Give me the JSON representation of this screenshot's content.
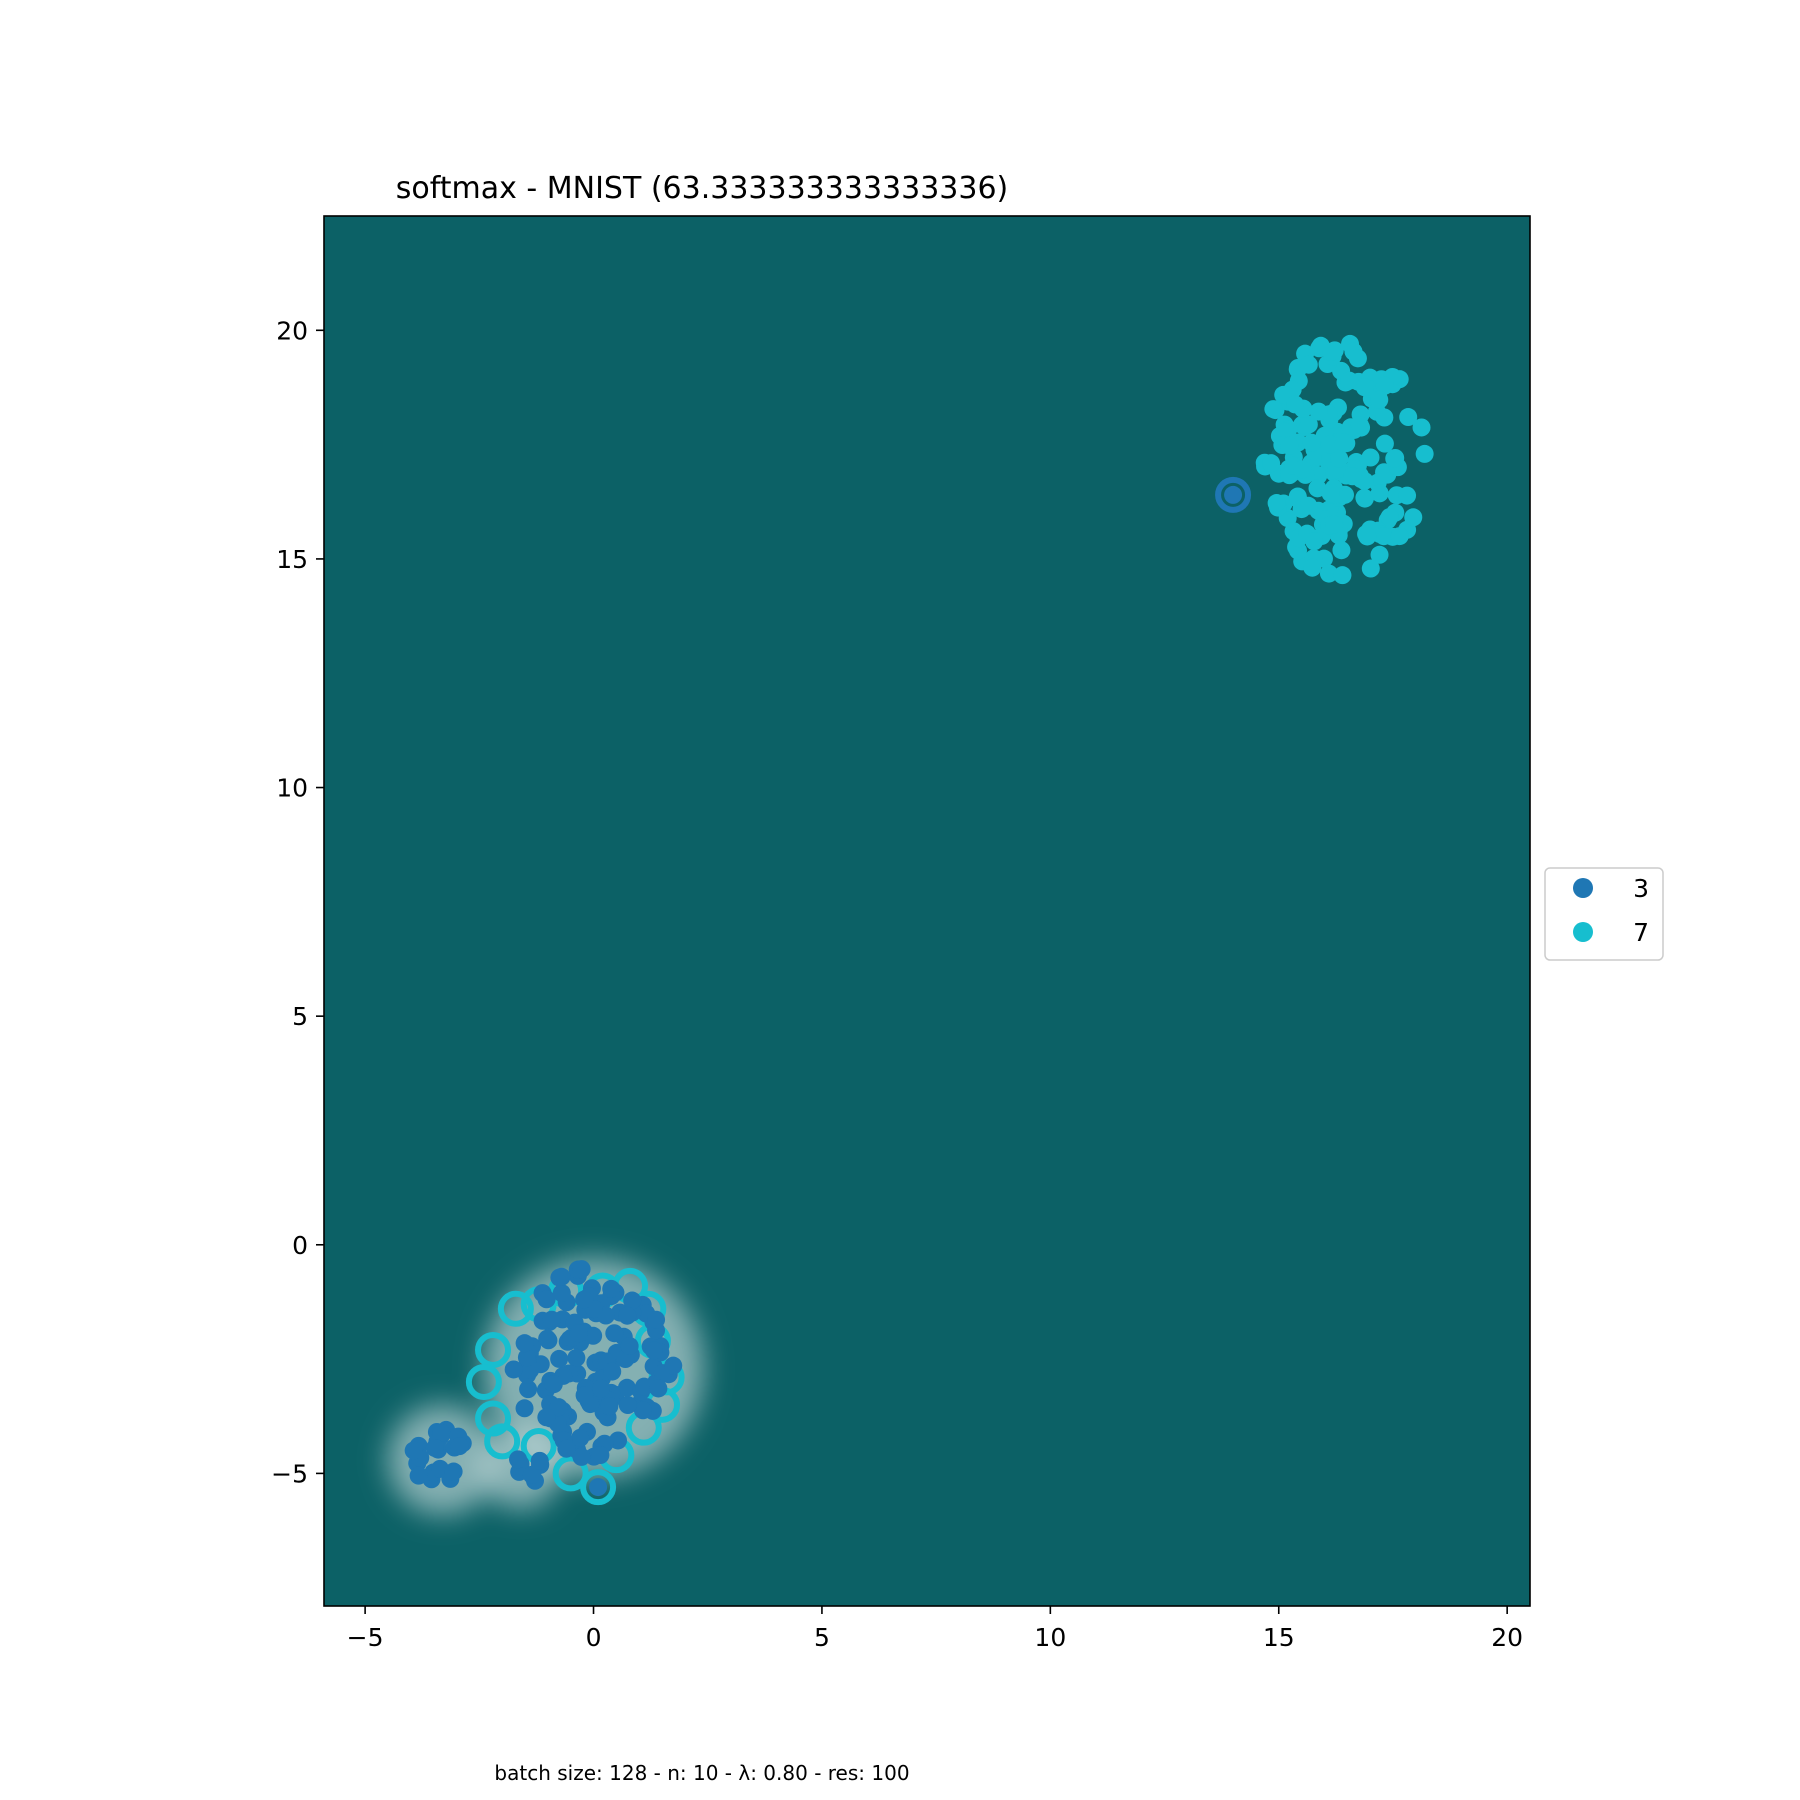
{
  "chart_data": {
    "type": "scatter",
    "title": "softmax - MNIST (63.333333333333336)",
    "footer": "batch size: 128 - n: 10 - λ: 0.80 - res: 100",
    "xlabel": "",
    "ylabel": "",
    "xlim": [
      -5.9,
      20.5
    ],
    "ylim": [
      -7.9,
      22.5
    ],
    "xticks": [
      -5,
      0,
      5,
      10,
      15,
      20
    ],
    "xtick_labels": [
      "−5",
      "0",
      "5",
      "10",
      "15",
      "20"
    ],
    "yticks": [
      -5,
      0,
      5,
      10,
      15,
      20
    ],
    "ytick_labels": [
      "−5",
      "0",
      "5",
      "10",
      "15",
      "20"
    ],
    "grid": false,
    "background_color": "#0c6166",
    "legend": {
      "placement": "center-right-outside",
      "entries": [
        {
          "label": "3",
          "color": "#1f77b4"
        },
        {
          "label": "7",
          "color": "#17becf"
        }
      ]
    },
    "series": [
      {
        "name": "3",
        "color": "#1f77b4",
        "clusters": [
          {
            "cx": 0.0,
            "cy": -2.6,
            "rx": 1.8,
            "ry": 2.1,
            "n": 130,
            "seed": 11
          },
          {
            "cx": -3.4,
            "cy": -4.6,
            "rx": 0.7,
            "ry": 0.6,
            "n": 22,
            "seed": 23
          },
          {
            "cx": -1.6,
            "cy": -4.9,
            "rx": 0.5,
            "ry": 0.35,
            "n": 8,
            "seed": 31
          }
        ],
        "points": [
          [
            14.0,
            16.4
          ],
          [
            -0.7,
            -0.7
          ],
          [
            0.1,
            -5.3
          ]
        ]
      },
      {
        "name": "7",
        "color": "#17becf",
        "clusters": [
          {
            "cx": 16.4,
            "cy": 17.2,
            "rx": 1.8,
            "ry": 2.6,
            "n": 170,
            "seed": 47
          }
        ],
        "misclassified_rings": [
          [
            -1.7,
            -1.4
          ],
          [
            -2.2,
            -2.3
          ],
          [
            -2.4,
            -3.0
          ],
          [
            -2.2,
            -3.8
          ],
          [
            -2.0,
            -4.3
          ],
          [
            -1.2,
            -4.4
          ],
          [
            -0.5,
            -5.0
          ],
          [
            0.1,
            -5.3
          ],
          [
            0.5,
            -4.6
          ],
          [
            1.1,
            -4.0
          ],
          [
            1.5,
            -3.5
          ],
          [
            1.6,
            -2.9
          ],
          [
            1.3,
            -2.1
          ],
          [
            1.2,
            -1.4
          ],
          [
            0.8,
            -0.9
          ],
          [
            0.2,
            -1.0
          ],
          [
            -0.6,
            -1.0
          ],
          [
            -1.2,
            -1.3
          ]
        ],
        "points": []
      }
    ]
  }
}
